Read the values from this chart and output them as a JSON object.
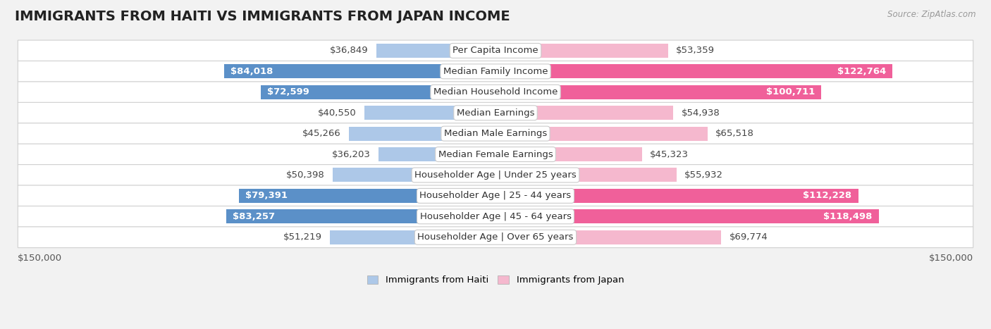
{
  "title": "IMMIGRANTS FROM HAITI VS IMMIGRANTS FROM JAPAN INCOME",
  "source": "Source: ZipAtlas.com",
  "categories": [
    "Per Capita Income",
    "Median Family Income",
    "Median Household Income",
    "Median Earnings",
    "Median Male Earnings",
    "Median Female Earnings",
    "Householder Age | Under 25 years",
    "Householder Age | 25 - 44 years",
    "Householder Age | 45 - 64 years",
    "Householder Age | Over 65 years"
  ],
  "haiti_values": [
    36849,
    84018,
    72599,
    40550,
    45266,
    36203,
    50398,
    79391,
    83257,
    51219
  ],
  "japan_values": [
    53359,
    122764,
    100711,
    54938,
    65518,
    45323,
    55932,
    112228,
    118498,
    69774
  ],
  "haiti_labels": [
    "$36,849",
    "$84,018",
    "$72,599",
    "$40,550",
    "$45,266",
    "$36,203",
    "$50,398",
    "$79,391",
    "$83,257",
    "$51,219"
  ],
  "japan_labels": [
    "$53,359",
    "$122,764",
    "$100,711",
    "$54,938",
    "$65,518",
    "$45,323",
    "$55,932",
    "$112,228",
    "$118,498",
    "$69,774"
  ],
  "haiti_color_light": "#adc8e8",
  "haiti_color_dark": "#5b90c8",
  "japan_color_light": "#f5b8ce",
  "japan_color_dark": "#f0609a",
  "haiti_dark_threshold": 70000,
  "japan_dark_threshold": 90000,
  "haiti_label_inside_threshold": 62000,
  "japan_label_inside_threshold": 80000,
  "max_value": 150000,
  "legend_haiti": "Immigrants from Haiti",
  "legend_japan": "Immigrants from Japan",
  "background_color": "#f2f2f2",
  "row_bg_color": "#ffffff",
  "row_border_color": "#d0d0d0",
  "label_fontsize": 9.5,
  "title_fontsize": 14,
  "source_fontsize": 8.5
}
